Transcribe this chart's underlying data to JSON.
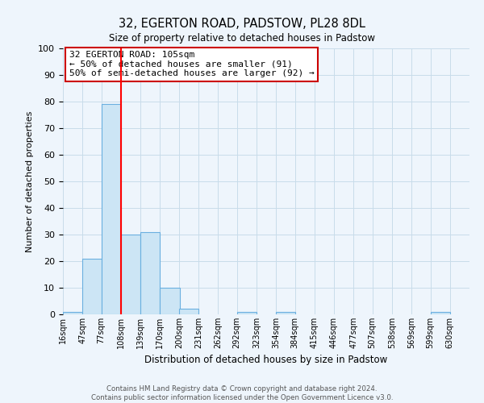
{
  "title": "32, EGERTON ROAD, PADSTOW, PL28 8DL",
  "subtitle": "Size of property relative to detached houses in Padstow",
  "xlabel": "Distribution of detached houses by size in Padstow",
  "ylabel": "Number of detached properties",
  "bin_labels": [
    "16sqm",
    "47sqm",
    "77sqm",
    "108sqm",
    "139sqm",
    "170sqm",
    "200sqm",
    "231sqm",
    "262sqm",
    "292sqm",
    "323sqm",
    "354sqm",
    "384sqm",
    "415sqm",
    "446sqm",
    "477sqm",
    "507sqm",
    "538sqm",
    "569sqm",
    "599sqm",
    "630sqm"
  ],
  "bar_values": [
    1,
    21,
    79,
    30,
    31,
    10,
    2,
    0,
    0,
    1,
    0,
    1,
    0,
    0,
    0,
    0,
    0,
    0,
    0,
    1,
    0
  ],
  "bin_edges": [
    16,
    47,
    77,
    108,
    139,
    170,
    200,
    231,
    262,
    292,
    323,
    354,
    384,
    415,
    446,
    477,
    507,
    538,
    569,
    599,
    630
  ],
  "bar_color": "#cce5f5",
  "bar_edgecolor": "#6aafe0",
  "red_line_x": 108,
  "annotation_text": "32 EGERTON ROAD: 105sqm\n← 50% of detached houses are smaller (91)\n50% of semi-detached houses are larger (92) →",
  "annotation_box_color": "#ffffff",
  "annotation_box_edgecolor": "#cc0000",
  "ylim": [
    0,
    100
  ],
  "yticks": [
    0,
    10,
    20,
    30,
    40,
    50,
    60,
    70,
    80,
    90,
    100
  ],
  "grid_color": "#c8dcea",
  "background_color": "#eef5fc",
  "footer_text": "Contains HM Land Registry data © Crown copyright and database right 2024.\nContains public sector information licensed under the Open Government Licence v3.0."
}
